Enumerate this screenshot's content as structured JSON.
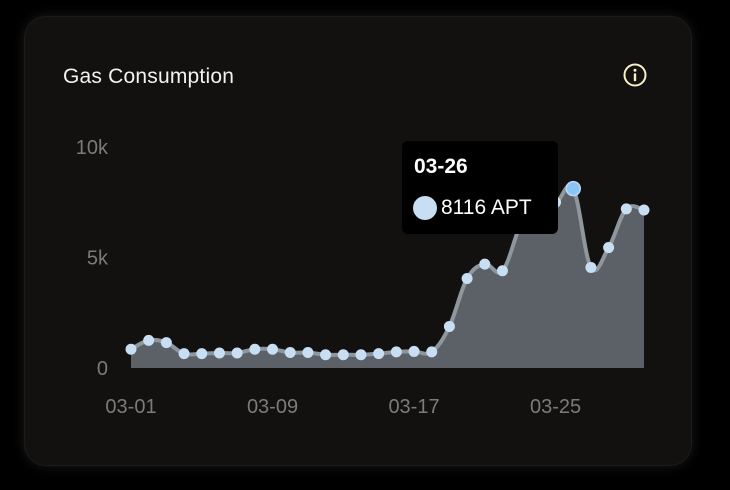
{
  "card": {
    "title": "Gas Consumption",
    "info_icon": "info-circle-icon"
  },
  "colors": {
    "background": "#121110",
    "area_fill": "#5b6167",
    "line": "#8f979e",
    "point": "#c7def3",
    "active_point": "#8cc4f5",
    "info_icon": "#f5f0c6",
    "axis_text": "#7b7b7b"
  },
  "tooltip": {
    "date": "03-26",
    "value_text": "8116 APT"
  },
  "chart_data": {
    "type": "area",
    "title": "Gas Consumption",
    "xlabel": "",
    "ylabel": "",
    "x": [
      "03-01",
      "03-02",
      "03-03",
      "03-04",
      "03-05",
      "03-06",
      "03-07",
      "03-08",
      "03-09",
      "03-10",
      "03-11",
      "03-12",
      "03-13",
      "03-14",
      "03-15",
      "03-16",
      "03-17",
      "03-18",
      "03-19",
      "03-20",
      "03-21",
      "03-22",
      "03-23",
      "03-24",
      "03-25",
      "03-26",
      "03-27",
      "03-28",
      "03-29",
      "03-30"
    ],
    "x_tick_labels": [
      "03-01",
      "03-09",
      "03-17",
      "03-25"
    ],
    "y_tick_labels": [
      "0",
      "5k",
      "10k"
    ],
    "ylim": [
      0,
      10000
    ],
    "grid": false,
    "series": [
      {
        "name": "",
        "unit": "APT",
        "values": [
          850,
          1250,
          1150,
          650,
          650,
          680,
          680,
          850,
          850,
          700,
          700,
          600,
          600,
          600,
          650,
          730,
          750,
          730,
          1880,
          4050,
          4700,
          4400,
          6450,
          7950,
          7500,
          8116,
          4550,
          5450,
          7200,
          7150
        ]
      }
    ],
    "highlighted": {
      "x": "03-26",
      "value": 8116
    }
  }
}
